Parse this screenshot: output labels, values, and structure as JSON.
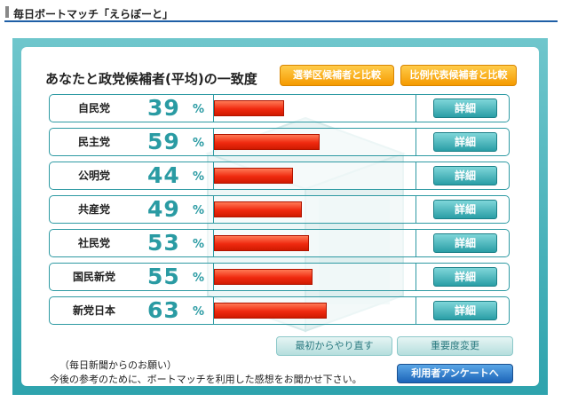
{
  "header": {
    "title": "毎日ボートマッチ「えらぼーと」"
  },
  "panel": {
    "title": "あなたと政党候補者(平均)の一致度",
    "btn_district": "選挙区候補者と比較",
    "btn_pr": "比例代表候補者と比較"
  },
  "parties": [
    {
      "name": "自民党",
      "percent": 39,
      "detail": "詳細"
    },
    {
      "name": "民主党",
      "percent": 59,
      "detail": "詳細"
    },
    {
      "name": "公明党",
      "percent": 44,
      "detail": "詳細"
    },
    {
      "name": "共産党",
      "percent": 49,
      "detail": "詳細"
    },
    {
      "name": "社民党",
      "percent": 53,
      "detail": "詳細"
    },
    {
      "name": "国民新党",
      "percent": 55,
      "detail": "詳細"
    },
    {
      "name": "新党日本",
      "percent": 63,
      "detail": "詳細"
    }
  ],
  "percent_sign": "%",
  "actions": {
    "restart": "最初からやり直す",
    "importance": "重要度変更",
    "survey": "利用者アンケートへ"
  },
  "request": {
    "title": "（毎日新聞からのお願い）",
    "text": "今後の参考のために、ボートマッチを利用した感想をお聞かせ下さい。"
  },
  "colors": {
    "teal": "#2a9ba3",
    "bar_red": "#f02a10",
    "orange": "#f59a00",
    "navy": "#1f5fa6"
  }
}
